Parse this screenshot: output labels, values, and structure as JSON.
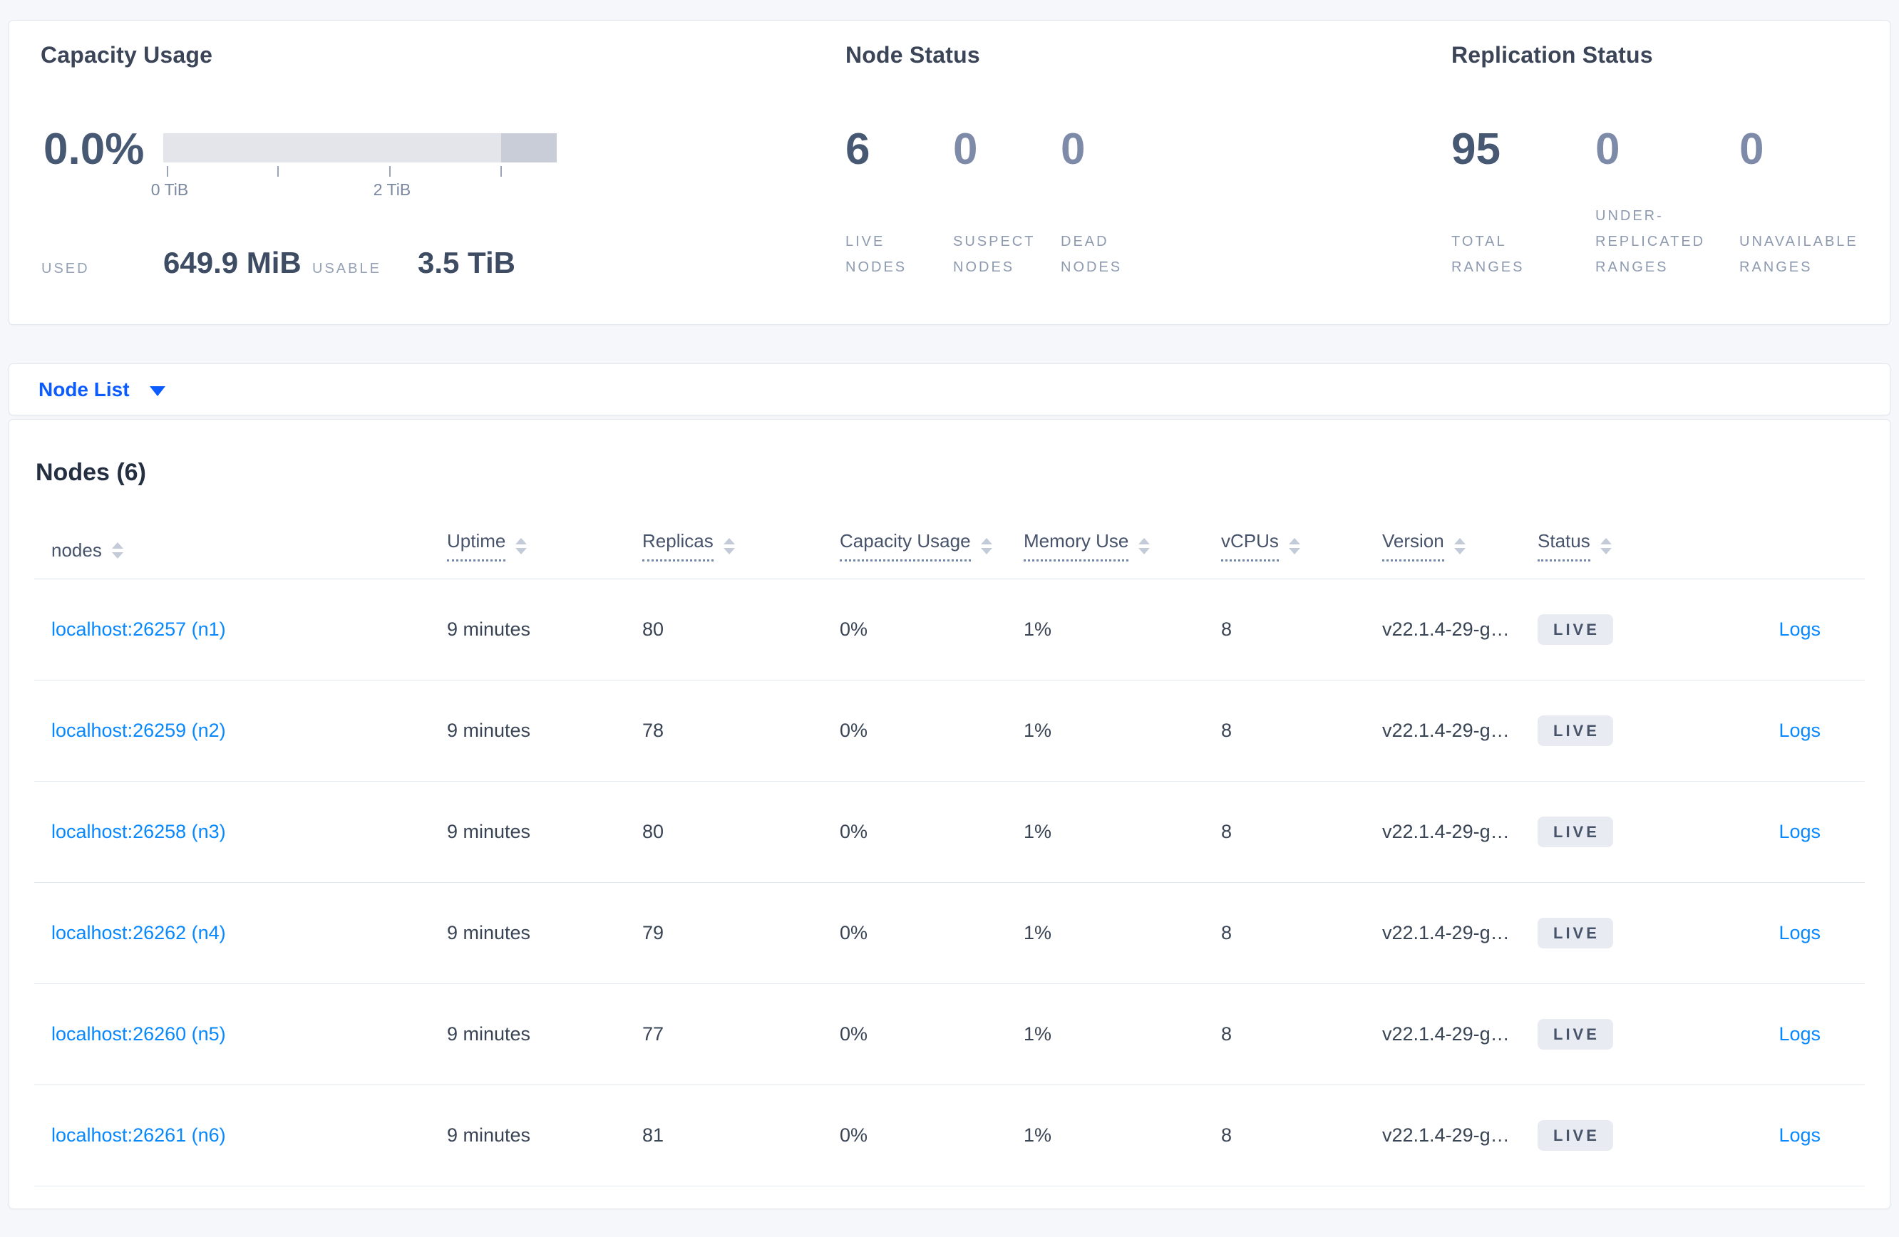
{
  "summary": {
    "capacity": {
      "title": "Capacity Usage",
      "percent": "0.0%",
      "tick_labels": [
        "0 TiB",
        "2 TiB"
      ],
      "used_label": "USED",
      "used_value": "649.9 MiB",
      "usable_label": "USABLE",
      "usable_value": "3.5 TiB"
    },
    "node_status": {
      "title": "Node Status",
      "stats": [
        {
          "value": "6",
          "label": "LIVE NODES"
        },
        {
          "value": "0",
          "label": "SUSPECT NODES"
        },
        {
          "value": "0",
          "label": "DEAD NODES"
        }
      ]
    },
    "replication_status": {
      "title": "Replication Status",
      "stats": [
        {
          "value": "95",
          "label": "TOTAL RANGES"
        },
        {
          "value": "0",
          "label": "UNDER-REPLICATED RANGES"
        },
        {
          "value": "0",
          "label": "UNAVAILABLE RANGES"
        }
      ]
    }
  },
  "view_selector": {
    "label": "Node List",
    "icon": "caret-down-icon"
  },
  "table": {
    "title": "Nodes (6)",
    "columns": [
      {
        "label": "nodes"
      },
      {
        "label": "Uptime"
      },
      {
        "label": "Replicas"
      },
      {
        "label": "Capacity Usage"
      },
      {
        "label": "Memory Use"
      },
      {
        "label": "vCPUs"
      },
      {
        "label": "Version"
      },
      {
        "label": "Status"
      }
    ],
    "rows": [
      {
        "node": "localhost:26257 (n1)",
        "uptime": "9 minutes",
        "replicas": "80",
        "capacity": "0%",
        "memory": "1%",
        "vcpus": "8",
        "version": "v22.1.4-29-g…",
        "status": "LIVE",
        "logs": "Logs"
      },
      {
        "node": "localhost:26259 (n2)",
        "uptime": "9 minutes",
        "replicas": "78",
        "capacity": "0%",
        "memory": "1%",
        "vcpus": "8",
        "version": "v22.1.4-29-g…",
        "status": "LIVE",
        "logs": "Logs"
      },
      {
        "node": "localhost:26258 (n3)",
        "uptime": "9 minutes",
        "replicas": "80",
        "capacity": "0%",
        "memory": "1%",
        "vcpus": "8",
        "version": "v22.1.4-29-g…",
        "status": "LIVE",
        "logs": "Logs"
      },
      {
        "node": "localhost:26262 (n4)",
        "uptime": "9 minutes",
        "replicas": "79",
        "capacity": "0%",
        "memory": "1%",
        "vcpus": "8",
        "version": "v22.1.4-29-g…",
        "status": "LIVE",
        "logs": "Logs"
      },
      {
        "node": "localhost:26260 (n5)",
        "uptime": "9 minutes",
        "replicas": "77",
        "capacity": "0%",
        "memory": "1%",
        "vcpus": "8",
        "version": "v22.1.4-29-g…",
        "status": "LIVE",
        "logs": "Logs"
      },
      {
        "node": "localhost:26261 (n6)",
        "uptime": "9 minutes",
        "replicas": "81",
        "capacity": "0%",
        "memory": "1%",
        "vcpus": "8",
        "version": "v22.1.4-29-g…",
        "status": "LIVE",
        "logs": "Logs"
      }
    ]
  },
  "colors": {
    "link_blue": "#0788ff",
    "selector_blue": "#0b5bff",
    "badge_bg": "#e8ebf1",
    "text_dark": "#394455",
    "muted_label": "#8d9ab0",
    "bar_track": "#e3e5eb",
    "bar_segment": "#c9cdd7"
  }
}
